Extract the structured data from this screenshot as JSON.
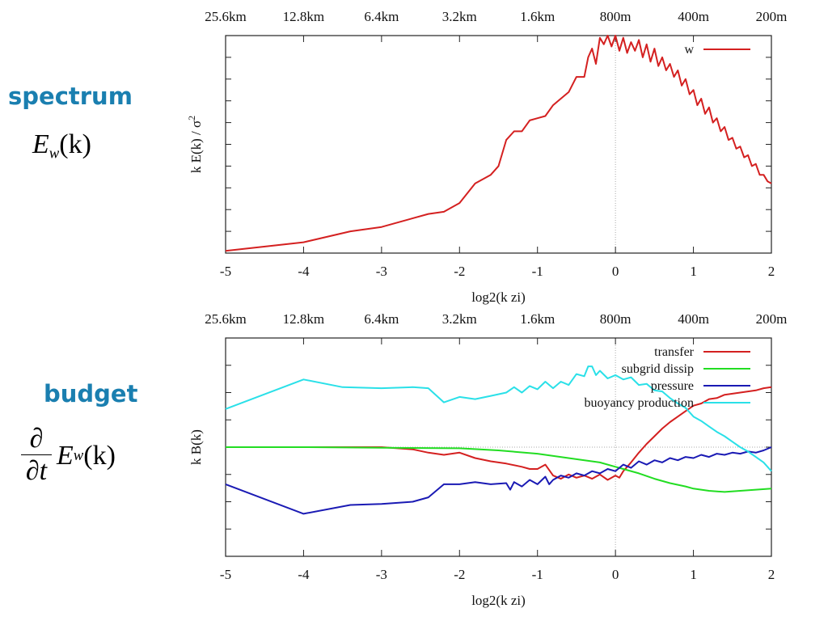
{
  "left_labels": {
    "spectrum_heading": "spectrum",
    "spectrum_formula": {
      "E": "E",
      "sub": "w",
      "arg": "(k)"
    },
    "budget_heading": "budget",
    "budget_formula": {
      "num": "∂",
      "den": "∂t",
      "E": "E",
      "sub": "w",
      "arg": "(k)"
    }
  },
  "colors": {
    "red": "#d42020",
    "green": "#22dd22",
    "blue": "#1a1ab4",
    "cyan": "#2ae0e8",
    "grid": "#aaaaaa"
  },
  "chart_data": [
    {
      "type": "line",
      "ylabel": "k E(k) / σ²",
      "xlabel": "log2(k zi)",
      "xlim": [
        -5,
        2
      ],
      "xticks": [
        "-5",
        "-4",
        "-3",
        "-2",
        "-1",
        "0",
        "1",
        "2"
      ],
      "top_ticks": [
        "25.6km",
        "12.8km",
        "6.4km",
        "3.2km",
        "1.6km",
        "800m",
        "400m",
        "200m"
      ],
      "ylim": [
        0,
        1
      ],
      "y_tick_labels": "none",
      "vertical_reference_line_at_x": 0,
      "legend_position": "top-right",
      "series": [
        {
          "name": "w",
          "color": "red",
          "points": [
            [
              -5,
              0.01
            ],
            [
              -4,
              0.05
            ],
            [
              -3.4,
              0.1
            ],
            [
              -3,
              0.12
            ],
            [
              -2.4,
              0.18
            ],
            [
              -2.2,
              0.19
            ],
            [
              -2,
              0.23
            ],
            [
              -1.8,
              0.32
            ],
            [
              -1.6,
              0.36
            ],
            [
              -1.5,
              0.4
            ],
            [
              -1.4,
              0.52
            ],
            [
              -1.3,
              0.56
            ],
            [
              -1.2,
              0.56
            ],
            [
              -1.1,
              0.61
            ],
            [
              -1,
              0.62
            ],
            [
              -0.9,
              0.63
            ],
            [
              -0.8,
              0.68
            ],
            [
              -0.7,
              0.71
            ],
            [
              -0.6,
              0.74
            ],
            [
              -0.5,
              0.81
            ],
            [
              -0.4,
              0.81
            ],
            [
              -0.35,
              0.9
            ],
            [
              -0.3,
              0.94
            ],
            [
              -0.25,
              0.87
            ],
            [
              -0.2,
              0.99
            ],
            [
              -0.15,
              0.96
            ],
            [
              -0.1,
              1.0
            ],
            [
              -0.05,
              0.95
            ],
            [
              0,
              1.0
            ],
            [
              0.05,
              0.93
            ],
            [
              0.1,
              0.99
            ],
            [
              0.15,
              0.92
            ],
            [
              0.2,
              0.97
            ],
            [
              0.25,
              0.93
            ],
            [
              0.3,
              0.98
            ],
            [
              0.35,
              0.9
            ],
            [
              0.4,
              0.96
            ],
            [
              0.45,
              0.88
            ],
            [
              0.5,
              0.94
            ],
            [
              0.55,
              0.86
            ],
            [
              0.6,
              0.9
            ],
            [
              0.65,
              0.84
            ],
            [
              0.7,
              0.87
            ],
            [
              0.75,
              0.81
            ],
            [
              0.8,
              0.84
            ],
            [
              0.85,
              0.77
            ],
            [
              0.9,
              0.8
            ],
            [
              0.95,
              0.73
            ],
            [
              1.0,
              0.75
            ],
            [
              1.05,
              0.68
            ],
            [
              1.1,
              0.71
            ],
            [
              1.15,
              0.64
            ],
            [
              1.2,
              0.67
            ],
            [
              1.25,
              0.6
            ],
            [
              1.3,
              0.62
            ],
            [
              1.35,
              0.56
            ],
            [
              1.4,
              0.58
            ],
            [
              1.45,
              0.52
            ],
            [
              1.5,
              0.53
            ],
            [
              1.55,
              0.48
            ],
            [
              1.6,
              0.49
            ],
            [
              1.65,
              0.44
            ],
            [
              1.7,
              0.45
            ],
            [
              1.75,
              0.4
            ],
            [
              1.8,
              0.41
            ],
            [
              1.85,
              0.36
            ],
            [
              1.9,
              0.36
            ],
            [
              1.95,
              0.33
            ],
            [
              2.0,
              0.32
            ]
          ]
        }
      ]
    },
    {
      "type": "line",
      "ylabel": "k B(k)",
      "xlabel": "log2(k zi)",
      "xlim": [
        -5,
        2
      ],
      "xticks": [
        "-5",
        "-4",
        "-3",
        "-2",
        "-1",
        "0",
        "1",
        "2"
      ],
      "top_ticks": [
        "25.6km",
        "12.8km",
        "6.4km",
        "3.2km",
        "1.6km",
        "800m",
        "400m",
        "200m"
      ],
      "ylim": [
        -1,
        1
      ],
      "y_tick_labels": "none",
      "zero_reference_lines": true,
      "legend_position": "top-right",
      "series": [
        {
          "name": "transfer",
          "color": "red",
          "points": [
            [
              -5,
              0
            ],
            [
              -4,
              0
            ],
            [
              -3,
              0
            ],
            [
              -2.6,
              -0.02
            ],
            [
              -2.4,
              -0.05
            ],
            [
              -2.2,
              -0.07
            ],
            [
              -2,
              -0.05
            ],
            [
              -1.8,
              -0.1
            ],
            [
              -1.6,
              -0.13
            ],
            [
              -1.4,
              -0.15
            ],
            [
              -1.2,
              -0.18
            ],
            [
              -1.1,
              -0.2
            ],
            [
              -1,
              -0.2
            ],
            [
              -0.9,
              -0.16
            ],
            [
              -0.8,
              -0.26
            ],
            [
              -0.7,
              -0.29
            ],
            [
              -0.6,
              -0.25
            ],
            [
              -0.5,
              -0.28
            ],
            [
              -0.4,
              -0.26
            ],
            [
              -0.3,
              -0.29
            ],
            [
              -0.2,
              -0.25
            ],
            [
              -0.1,
              -0.3
            ],
            [
              0,
              -0.26
            ],
            [
              0.05,
              -0.28
            ],
            [
              0.1,
              -0.22
            ],
            [
              0.2,
              -0.14
            ],
            [
              0.3,
              -0.05
            ],
            [
              0.4,
              0.03
            ],
            [
              0.5,
              0.1
            ],
            [
              0.6,
              0.17
            ],
            [
              0.7,
              0.23
            ],
            [
              0.8,
              0.28
            ],
            [
              0.9,
              0.33
            ],
            [
              1.0,
              0.38
            ],
            [
              1.1,
              0.4
            ],
            [
              1.2,
              0.44
            ],
            [
              1.3,
              0.45
            ],
            [
              1.4,
              0.48
            ],
            [
              1.5,
              0.49
            ],
            [
              1.6,
              0.5
            ],
            [
              1.7,
              0.51
            ],
            [
              1.8,
              0.52
            ],
            [
              1.9,
              0.54
            ],
            [
              2.0,
              0.55
            ]
          ]
        },
        {
          "name": "subgrid dissip",
          "color": "green",
          "points": [
            [
              -5,
              0
            ],
            [
              -4,
              0
            ],
            [
              -3,
              -0.005
            ],
            [
              -2,
              -0.01
            ],
            [
              -1.5,
              -0.03
            ],
            [
              -1,
              -0.06
            ],
            [
              -0.5,
              -0.11
            ],
            [
              -0.2,
              -0.14
            ],
            [
              0,
              -0.18
            ],
            [
              0.3,
              -0.24
            ],
            [
              0.5,
              -0.29
            ],
            [
              0.7,
              -0.33
            ],
            [
              0.9,
              -0.36
            ],
            [
              1.0,
              -0.38
            ],
            [
              1.2,
              -0.4
            ],
            [
              1.4,
              -0.41
            ],
            [
              1.6,
              -0.4
            ],
            [
              1.8,
              -0.39
            ],
            [
              2.0,
              -0.38
            ]
          ]
        },
        {
          "name": "pressure",
          "color": "blue",
          "points": [
            [
              -5,
              -0.34
            ],
            [
              -4,
              -0.61
            ],
            [
              -3.4,
              -0.53
            ],
            [
              -3,
              -0.52
            ],
            [
              -2.6,
              -0.5
            ],
            [
              -2.4,
              -0.46
            ],
            [
              -2.2,
              -0.34
            ],
            [
              -2,
              -0.34
            ],
            [
              -1.8,
              -0.32
            ],
            [
              -1.6,
              -0.34
            ],
            [
              -1.4,
              -0.33
            ],
            [
              -1.35,
              -0.39
            ],
            [
              -1.3,
              -0.32
            ],
            [
              -1.2,
              -0.36
            ],
            [
              -1.1,
              -0.3
            ],
            [
              -1.0,
              -0.34
            ],
            [
              -0.9,
              -0.27
            ],
            [
              -0.85,
              -0.34
            ],
            [
              -0.8,
              -0.3
            ],
            [
              -0.7,
              -0.26
            ],
            [
              -0.6,
              -0.28
            ],
            [
              -0.5,
              -0.24
            ],
            [
              -0.4,
              -0.26
            ],
            [
              -0.3,
              -0.22
            ],
            [
              -0.2,
              -0.24
            ],
            [
              -0.1,
              -0.2
            ],
            [
              0,
              -0.22
            ],
            [
              0.1,
              -0.16
            ],
            [
              0.2,
              -0.19
            ],
            [
              0.3,
              -0.13
            ],
            [
              0.4,
              -0.16
            ],
            [
              0.5,
              -0.12
            ],
            [
              0.6,
              -0.14
            ],
            [
              0.7,
              -0.1
            ],
            [
              0.8,
              -0.12
            ],
            [
              0.9,
              -0.09
            ],
            [
              1.0,
              -0.1
            ],
            [
              1.1,
              -0.07
            ],
            [
              1.2,
              -0.09
            ],
            [
              1.3,
              -0.06
            ],
            [
              1.4,
              -0.07
            ],
            [
              1.5,
              -0.05
            ],
            [
              1.6,
              -0.06
            ],
            [
              1.7,
              -0.04
            ],
            [
              1.8,
              -0.05
            ],
            [
              1.9,
              -0.03
            ],
            [
              2.0,
              0.0
            ]
          ]
        },
        {
          "name": "buoyancy production",
          "color": "cyan",
          "points": [
            [
              -5,
              0.35
            ],
            [
              -4,
              0.62
            ],
            [
              -3.5,
              0.55
            ],
            [
              -3,
              0.54
            ],
            [
              -2.6,
              0.55
            ],
            [
              -2.4,
              0.54
            ],
            [
              -2.2,
              0.41
            ],
            [
              -2,
              0.46
            ],
            [
              -1.8,
              0.44
            ],
            [
              -1.6,
              0.47
            ],
            [
              -1.4,
              0.5
            ],
            [
              -1.3,
              0.55
            ],
            [
              -1.2,
              0.5
            ],
            [
              -1.1,
              0.56
            ],
            [
              -1,
              0.53
            ],
            [
              -0.9,
              0.6
            ],
            [
              -0.8,
              0.54
            ],
            [
              -0.7,
              0.6
            ],
            [
              -0.6,
              0.57
            ],
            [
              -0.5,
              0.67
            ],
            [
              -0.4,
              0.65
            ],
            [
              -0.35,
              0.74
            ],
            [
              -0.3,
              0.74
            ],
            [
              -0.25,
              0.66
            ],
            [
              -0.2,
              0.7
            ],
            [
              -0.1,
              0.63
            ],
            [
              0,
              0.66
            ],
            [
              0.1,
              0.62
            ],
            [
              0.2,
              0.64
            ],
            [
              0.3,
              0.57
            ],
            [
              0.4,
              0.58
            ],
            [
              0.5,
              0.52
            ],
            [
              0.6,
              0.51
            ],
            [
              0.7,
              0.45
            ],
            [
              0.8,
              0.4
            ],
            [
              0.9,
              0.36
            ],
            [
              1.0,
              0.28
            ],
            [
              1.1,
              0.24
            ],
            [
              1.2,
              0.19
            ],
            [
              1.3,
              0.14
            ],
            [
              1.4,
              0.1
            ],
            [
              1.5,
              0.05
            ],
            [
              1.6,
              0.0
            ],
            [
              1.7,
              -0.04
            ],
            [
              1.8,
              -0.09
            ],
            [
              1.9,
              -0.14
            ],
            [
              2.0,
              -0.22
            ]
          ]
        }
      ]
    }
  ]
}
